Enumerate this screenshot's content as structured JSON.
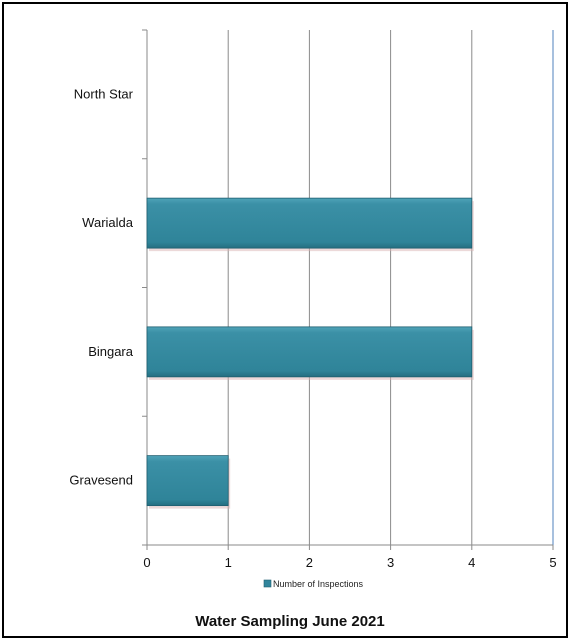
{
  "chart_data": {
    "type": "bar",
    "orientation": "horizontal",
    "title": "Water Sampling June 2021",
    "categories": [
      "North Star",
      "Warialda",
      "Bingara",
      "Gravesend"
    ],
    "series": [
      {
        "name": "Number of Inspections",
        "values": [
          0,
          4,
          4,
          1
        ],
        "color": "#31859c"
      }
    ],
    "xlim": [
      0,
      5
    ],
    "xticks": [
      "0",
      "1",
      "2",
      "3",
      "4",
      "5"
    ],
    "grid": true,
    "legend": "bottom"
  }
}
